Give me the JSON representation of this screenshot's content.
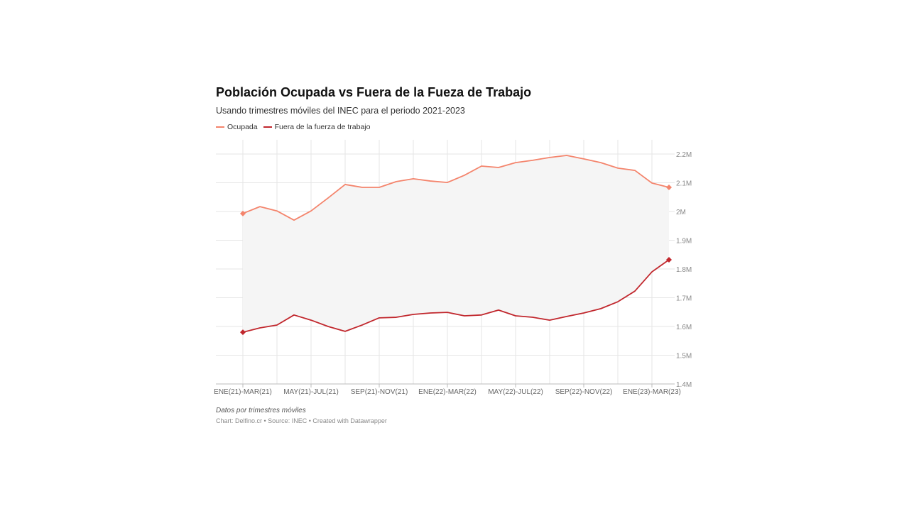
{
  "chart_data": {
    "type": "line",
    "title": "Población Ocupada vs Fuera de la Fueza de Trabajo",
    "subtitle": "Usando trimestres móviles del INEC para el periodo 2021-2023",
    "x_tick_labels": [
      "ENE(21)-MAR(21)",
      "MAY(21)-JUL(21)",
      "SEP(21)-NOV(21)",
      "ENE(22)-MAR(22)",
      "MAY(22)-JUL(22)",
      "SEP(22)-NOV(22)",
      "ENE(23)-MAR(23)"
    ],
    "x_tick_every": 4,
    "y_ticks": [
      1.4,
      1.5,
      1.6,
      1.7,
      1.8,
      1.9,
      2.0,
      2.1,
      2.2
    ],
    "y_tick_labels": [
      "1.4M",
      "1.5M",
      "1.6M",
      "1.7M",
      "1.8M",
      "1.9M",
      "2M",
      "2.1M",
      "2.2M"
    ],
    "ylim": [
      1.4,
      2.2
    ],
    "y_unit": "millions",
    "grid": true,
    "legend_position": "top-left",
    "area_between_series": true,
    "series": [
      {
        "name": "Ocupada",
        "color": "#f4846c",
        "values": [
          1.993,
          2.017,
          2.002,
          1.97,
          2.002,
          2.047,
          2.094,
          2.084,
          2.084,
          2.104,
          2.114,
          2.106,
          2.101,
          2.126,
          2.158,
          2.153,
          2.17,
          2.178,
          2.188,
          2.195,
          2.183,
          2.17,
          2.151,
          2.143,
          2.099,
          2.084
        ]
      },
      {
        "name": "Fuera de la fuerza de trabajo",
        "color": "#c1272d",
        "values": [
          1.58,
          1.595,
          1.605,
          1.64,
          1.622,
          1.6,
          1.583,
          1.605,
          1.63,
          1.632,
          1.642,
          1.647,
          1.649,
          1.637,
          1.64,
          1.657,
          1.637,
          1.632,
          1.622,
          1.635,
          1.647,
          1.662,
          1.686,
          1.723,
          1.79,
          1.832
        ]
      }
    ],
    "notes": "Datos por trimestres móviles",
    "byline": "Chart: Delfino.cr • Source: INEC • Created with Datawrapper"
  }
}
